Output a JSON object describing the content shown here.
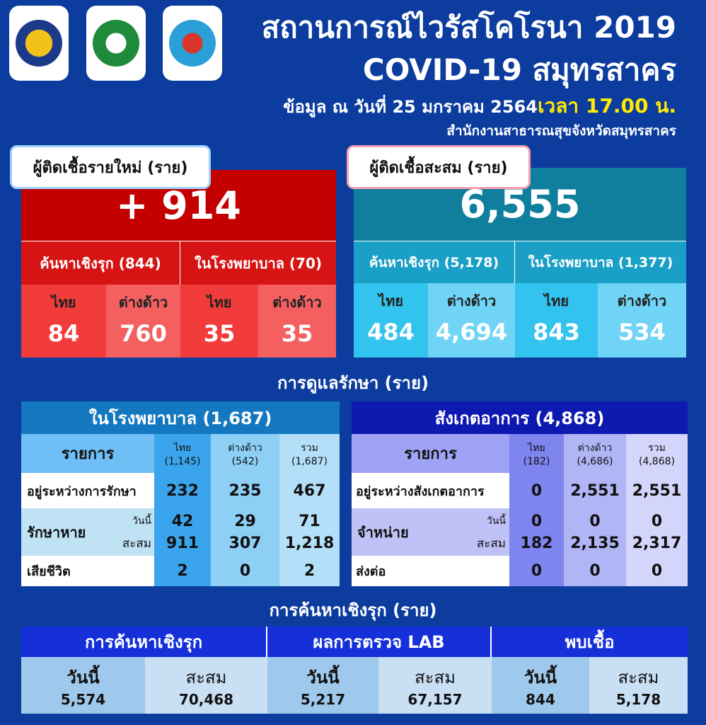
{
  "header": {
    "title_th": "สถานการณ์ไวรัสโคโรนา 2019",
    "title_en": "COVID-19 สมุทรสาคร",
    "date": "ข้อมูล ณ วันที่ 25 มกราคม 2564",
    "time": "เวลา 17.00 น.",
    "office": "สำนักงานสาธารณสุขจังหวัดสมุทรสาคร"
  },
  "logos": [
    "provincial-seal-logo",
    "ministry-of-public-health-logo",
    "samut-sakhon-province-logo"
  ],
  "new_cases": {
    "label": "ผู้ติดเชื้อรายใหม่ (ราย)",
    "total": "+ 914",
    "active": "ค้นหาเชิงรุก (844)",
    "hospital": "ในโรงพยาบาล (70)",
    "cols": [
      "ไทย",
      "ต่างด้าว",
      "ไทย",
      "ต่างด้าว"
    ],
    "values": [
      "84",
      "760",
      "35",
      "35"
    ]
  },
  "cumulative": {
    "label": "ผู้ติดเชื้อสะสม (ราย)",
    "total": "6,555",
    "active": "ค้นหาเชิงรุก (5,178)",
    "hospital": "ในโรงพยาบาล (1,377)",
    "cols": [
      "ไทย",
      "ต่างด้าว",
      "ไทย",
      "ต่างด้าว"
    ],
    "values": [
      "484",
      "4,694",
      "843",
      "534"
    ]
  },
  "care_title": "การดูแลรักษา (ราย)",
  "hospital_table": {
    "title": "ในโรงพยาบาล (1,687)",
    "item": "รายการ",
    "cols": [
      [
        "ไทย",
        "(1,145)"
      ],
      [
        "ต่างด้าว",
        "(542)"
      ],
      [
        "รวม",
        "(1,687)"
      ]
    ],
    "r1": "อยู่ระหว่างการรักษา",
    "r1v": [
      "232",
      "235",
      "467"
    ],
    "r2": "รักษาหาย",
    "today": "วันนี้",
    "cum": "สะสม",
    "r2t": [
      "42",
      "29",
      "71"
    ],
    "r2c": [
      "911",
      "307",
      "1,218"
    ],
    "r3": "เสียชีวิต",
    "r3v": [
      "2",
      "0",
      "2"
    ]
  },
  "observe_table": {
    "title": "สังเกตอาการ (4,868)",
    "item": "รายการ",
    "cols": [
      [
        "ไทย",
        "(182)"
      ],
      [
        "ต่างด้าว",
        "(4,686)"
      ],
      [
        "รวม",
        "(4,868)"
      ]
    ],
    "r1": "อยู่ระหว่างสังเกตอาการ",
    "r1v": [
      "0",
      "2,551",
      "2,551"
    ],
    "r2": "จำหน่าย",
    "today": "วันนี้",
    "cum": "สะสม",
    "r2t": [
      "0",
      "0",
      "0"
    ],
    "r2c": [
      "182",
      "2,135",
      "2,317"
    ],
    "r3": "ส่งต่อ",
    "r3v": [
      "0",
      "0",
      "0"
    ]
  },
  "search_title": "การค้นหาเชิงรุก (ราย)",
  "search": [
    {
      "title": "การค้นหาเชิงรุก",
      "today_label": "วันนี้",
      "today": "5,574",
      "cum_label": "สะสม",
      "cum": "70,468"
    },
    {
      "title": "ผลการตรวจ LAB",
      "today_label": "วันนี้",
      "today": "5,217",
      "cum_label": "สะสม",
      "cum": "67,157"
    },
    {
      "title": "พบเชื้อ",
      "today_label": "วันนี้",
      "today": "844",
      "cum_label": "สะสม",
      "cum": "5,178"
    }
  ],
  "colors": {
    "background": "#0c3c9e",
    "new_red": "#c40000",
    "cum_teal": "#107f9e",
    "yellow": "#ffea00"
  }
}
